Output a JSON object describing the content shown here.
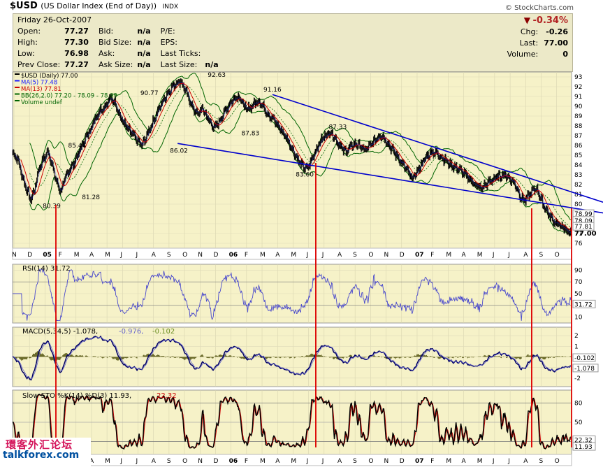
{
  "header": {
    "symbol": "$USD",
    "description": "(US Dollar Index (End of Day))",
    "exchange": "INDX",
    "copyright": "© StockCharts.com"
  },
  "info": {
    "date": "Friday  26-Oct-2007",
    "rows": [
      {
        "l1": "Open:",
        "v1": "77.27",
        "l2": "Bid:",
        "v2": "n/a",
        "l3": "P/E:",
        "v3": ""
      },
      {
        "l1": "High:",
        "v1": "77.30",
        "l2": "Bid Size:",
        "v2": "n/a",
        "l3": "EPS:",
        "v3": ""
      },
      {
        "l1": "Low:",
        "v1": "76.98",
        "l2": "Ask:",
        "v2": "n/a",
        "l3": "Last Ticks:",
        "v3": ""
      },
      {
        "l1": "Prev Close:",
        "v1": "77.27",
        "l2": "Ask Size:",
        "v2": "n/a",
        "l3": "Last Size:",
        "v3": "n/a"
      }
    ],
    "change_pct": "-0.34%",
    "chg_label": "Chg:",
    "chg": "-0.26",
    "last_label": "Last:",
    "last": "77.00",
    "volume_label": "Volume:",
    "volume": "0"
  },
  "colors": {
    "panel_bg": "#f6f2c8",
    "price": "#000000",
    "ma5": "#1a1aff",
    "ma13": "#cc0000",
    "bb": "#006400",
    "trend": "#0000cc",
    "signal": "#dd0000",
    "rsi": "#4a4acc",
    "macd": "#000066",
    "hist": "#6b6b2a",
    "stoK": "#000000",
    "stoD": "#cc0000"
  },
  "chart_data": {
    "type": "line",
    "legend": [
      "$USD (Daily) 77.00",
      "MA(5) 77.48",
      "MA(13) 77.81",
      "BB(26,2.0) 77.20 - 78.09 - 78.99",
      "Volume undef"
    ],
    "x_labels": [
      "N",
      "D",
      "05",
      "F",
      "M",
      "A",
      "M",
      "J",
      "J",
      "A",
      "S",
      "O",
      "N",
      "D",
      "06",
      "F",
      "M",
      "A",
      "M",
      "J",
      "J",
      "A",
      "S",
      "O",
      "N",
      "D",
      "07",
      "F",
      "M",
      "A",
      "M",
      "J",
      "J",
      "A",
      "S",
      "O"
    ],
    "ylim": [
      75.5,
      93.5
    ],
    "y_ticks": [
      76,
      77,
      78,
      79,
      80,
      81,
      82,
      83,
      84,
      85,
      86,
      87,
      88,
      89,
      90,
      91,
      92,
      93
    ],
    "price_anchors": [
      [
        0,
        85.3
      ],
      [
        8,
        84.5
      ],
      [
        14,
        82.8
      ],
      [
        20,
        81.6
      ],
      [
        26,
        80.4
      ],
      [
        32,
        81.5
      ],
      [
        38,
        83.6
      ],
      [
        45,
        84.6
      ],
      [
        52,
        85.4
      ],
      [
        58,
        83.8
      ],
      [
        64,
        82.2
      ],
      [
        70,
        81.3
      ],
      [
        76,
        82.5
      ],
      [
        82,
        83.5
      ],
      [
        88,
        84.0
      ],
      [
        96,
        85.2
      ],
      [
        104,
        86.5
      ],
      [
        112,
        87.5
      ],
      [
        118,
        88.5
      ],
      [
        126,
        89.5
      ],
      [
        134,
        90.0
      ],
      [
        142,
        90.8
      ],
      [
        150,
        90.3
      ],
      [
        156,
        89.0
      ],
      [
        162,
        88.2
      ],
      [
        168,
        87.6
      ],
      [
        176,
        87.0
      ],
      [
        182,
        86.4
      ],
      [
        188,
        86.0
      ],
      [
        194,
        86.8
      ],
      [
        200,
        87.8
      ],
      [
        208,
        89.0
      ],
      [
        216,
        90.2
      ],
      [
        224,
        91.2
      ],
      [
        232,
        92.0
      ],
      [
        238,
        92.4
      ],
      [
        244,
        92.6
      ],
      [
        250,
        91.8
      ],
      [
        258,
        90.5
      ],
      [
        264,
        89.6
      ],
      [
        270,
        89.2
      ],
      [
        276,
        89.8
      ],
      [
        282,
        89.0
      ],
      [
        288,
        88.2
      ],
      [
        294,
        87.8
      ],
      [
        300,
        88.4
      ],
      [
        308,
        89.4
      ],
      [
        316,
        90.3
      ],
      [
        322,
        90.8
      ],
      [
        328,
        91.1
      ],
      [
        334,
        90.4
      ],
      [
        340,
        89.6
      ],
      [
        346,
        89.9
      ],
      [
        352,
        90.3
      ],
      [
        358,
        90.6
      ],
      [
        364,
        90.0
      ],
      [
        372,
        89.2
      ],
      [
        380,
        88.6
      ],
      [
        386,
        88.0
      ],
      [
        392,
        87.4
      ],
      [
        398,
        86.8
      ],
      [
        404,
        86.0
      ],
      [
        410,
        85.2
      ],
      [
        416,
        84.4
      ],
      [
        422,
        83.8
      ],
      [
        428,
        83.6
      ],
      [
        434,
        84.4
      ],
      [
        440,
        85.4
      ],
      [
        446,
        86.2
      ],
      [
        452,
        86.8
      ],
      [
        458,
        87.2
      ],
      [
        464,
        87.3
      ],
      [
        470,
        86.6
      ],
      [
        476,
        86.0
      ],
      [
        482,
        85.4
      ],
      [
        488,
        85.6
      ],
      [
        494,
        86.0
      ],
      [
        500,
        86.2
      ],
      [
        506,
        85.9
      ],
      [
        512,
        85.5
      ],
      [
        518,
        85.8
      ],
      [
        524,
        86.3
      ],
      [
        530,
        86.8
      ],
      [
        536,
        87.1
      ],
      [
        540,
        86.8
      ],
      [
        546,
        86.2
      ],
      [
        552,
        85.6
      ],
      [
        558,
        85.0
      ],
      [
        564,
        84.4
      ],
      [
        570,
        83.8
      ],
      [
        576,
        83.2
      ],
      [
        580,
        82.6
      ],
      [
        586,
        83.0
      ],
      [
        592,
        83.8
      ],
      [
        598,
        84.5
      ],
      [
        604,
        85.0
      ],
      [
        610,
        85.4
      ],
      [
        616,
        85.2
      ],
      [
        622,
        84.9
      ],
      [
        628,
        84.6
      ],
      [
        634,
        84.2
      ],
      [
        640,
        83.9
      ],
      [
        646,
        83.7
      ],
      [
        652,
        83.4
      ],
      [
        658,
        83.0
      ],
      [
        664,
        82.6
      ],
      [
        670,
        82.2
      ],
      [
        676,
        81.8
      ],
      [
        682,
        81.6
      ],
      [
        688,
        82.0
      ],
      [
        694,
        82.3
      ],
      [
        700,
        82.6
      ],
      [
        706,
        82.8
      ],
      [
        712,
        83.0
      ],
      [
        718,
        82.9
      ],
      [
        724,
        82.6
      ],
      [
        730,
        82.1
      ],
      [
        736,
        81.2
      ],
      [
        740,
        80.6
      ],
      [
        746,
        80.4
      ],
      [
        752,
        81.0
      ],
      [
        758,
        81.5
      ],
      [
        762,
        81.6
      ],
      [
        766,
        81.0
      ],
      [
        770,
        80.2
      ],
      [
        776,
        79.4
      ],
      [
        782,
        78.7
      ],
      [
        788,
        78.2
      ],
      [
        794,
        77.9
      ],
      [
        800,
        77.6
      ],
      [
        806,
        77.3
      ],
      [
        812,
        77.0
      ]
    ],
    "annotations": [
      {
        "label": "85.44",
        "i": 93,
        "v": 85.44,
        "pos": "above"
      },
      {
        "label": "80.39",
        "i": 56,
        "v": 80.39,
        "pos": "below"
      },
      {
        "label": "81.28",
        "i": 113,
        "v": 81.28,
        "pos": "below"
      },
      {
        "label": "90.77",
        "i": 198,
        "v": 90.77,
        "pos": "above"
      },
      {
        "label": "86.02",
        "i": 241,
        "v": 86.02,
        "pos": "below"
      },
      {
        "label": "92.63",
        "i": 296,
        "v": 92.63,
        "pos": "above"
      },
      {
        "label": "87.83",
        "i": 345,
        "v": 87.83,
        "pos": "below"
      },
      {
        "label": "91.16",
        "i": 377,
        "v": 91.16,
        "pos": "above"
      },
      {
        "label": "83.60",
        "i": 424,
        "v": 83.6,
        "pos": "below"
      },
      {
        "label": "87.33",
        "i": 472,
        "v": 87.33,
        "pos": "above"
      }
    ],
    "trendlines": [
      {
        "from": [
          378,
          91.2
        ],
        "to": [
          863,
          80.2
        ]
      },
      {
        "from": [
          240,
          86.2
        ],
        "to": [
          863,
          79.1
        ]
      }
    ],
    "signal_dates": [
      63,
      441,
      755,
      813
    ],
    "right_labels": [
      {
        "v": 78.99,
        "text": "78.99",
        "style": "box"
      },
      {
        "v": 78.3,
        "text": "78.09",
        "style": "box"
      },
      {
        "v": 77.7,
        "text": "77.81",
        "style": "box"
      },
      {
        "v": 77.0,
        "text": "77.00",
        "style": "bold"
      }
    ],
    "rsi": {
      "label": "RSI(14) 31.72",
      "ylim": [
        0,
        100
      ],
      "ticks": [
        10,
        30,
        50,
        70,
        90
      ],
      "last": "31.72"
    },
    "macd": {
      "label_a": "MACD(5,34,5) -1.078,",
      "label_b": "-0.976,",
      "label_c": "-0.102",
      "ticks": [
        2,
        1,
        0,
        -1,
        -2
      ],
      "ylim": [
        -2.8,
        2.8
      ],
      "last_hist": "-0.102",
      "last": "-1.078"
    },
    "sto": {
      "label_a": "Slow STO %K(14) %D(3) 11.93,",
      "label_b": "22.32",
      "ticks": [
        20,
        50,
        80
      ],
      "ylim": [
        0,
        100
      ],
      "last_d": "22.32",
      "last_k": "11.93"
    }
  },
  "watermark": {
    "cn": "環客外汇论坛",
    "en": "talkforex.com"
  }
}
